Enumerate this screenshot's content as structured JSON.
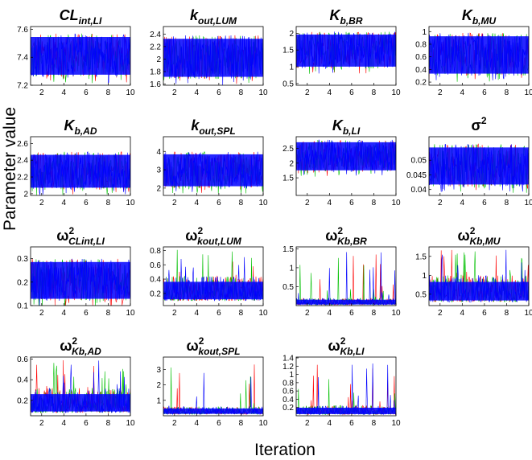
{
  "figure": {
    "ylabel": "Parameter value",
    "xlabel": "Iteration"
  },
  "chart_data": [
    {
      "type": "line",
      "title_base": "CL",
      "title_sub": "int,LI",
      "title_style": "italic",
      "yticks": [
        "7.2",
        "7.4",
        "7.6"
      ],
      "ytick_values": [
        7.2,
        7.4,
        7.6
      ],
      "ylim": [
        7.2,
        7.62
      ],
      "xticks": [
        "2",
        "4",
        "6",
        "8",
        "10"
      ],
      "xtick_values": [
        2,
        4,
        6,
        8,
        10
      ],
      "xlim": [
        1,
        10
      ],
      "band": [
        7.26,
        7.57
      ]
    },
    {
      "type": "line",
      "title_base": "k",
      "title_sub": "out,LUM",
      "title_style": "italic",
      "yticks": [
        "1.6",
        "1.8",
        "2",
        "2.2",
        "2.4"
      ],
      "ytick_values": [
        1.6,
        1.8,
        2,
        2.2,
        2.4
      ],
      "ylim": [
        1.58,
        2.52
      ],
      "xticks": [
        "2",
        "4",
        "6",
        "8",
        "10"
      ],
      "xtick_values": [
        2,
        4,
        6,
        8,
        10
      ],
      "xlim": [
        1,
        10
      ],
      "band": [
        1.68,
        2.38
      ]
    },
    {
      "type": "line",
      "title_base": "K",
      "title_sub": "b,BR",
      "title_style": "italic",
      "yticks": [
        "0.5",
        "1",
        "1.5",
        "2"
      ],
      "ytick_values": [
        0.5,
        1,
        1.5,
        2
      ],
      "ylim": [
        0.45,
        2.2
      ],
      "xticks": [
        "2",
        "4",
        "6",
        "8",
        "10"
      ],
      "xtick_values": [
        2,
        4,
        6,
        8,
        10
      ],
      "xlim": [
        1,
        10
      ],
      "band": [
        0.95,
        2.05
      ]
    },
    {
      "type": "line",
      "title_base": "K",
      "title_sub": "b,MU",
      "title_style": "italic",
      "yticks": [
        "0.2",
        "0.4",
        "0.6",
        "0.8",
        "1"
      ],
      "ytick_values": [
        0.2,
        0.4,
        0.6,
        0.8,
        1
      ],
      "ylim": [
        0.15,
        1.08
      ],
      "xticks": [
        "2",
        "4",
        "6",
        "8",
        "10"
      ],
      "xtick_values": [
        2,
        4,
        6,
        8,
        10
      ],
      "xlim": [
        1,
        10
      ],
      "band": [
        0.3,
        0.98
      ]
    },
    {
      "type": "line",
      "title_base": "K",
      "title_sub": "b,AD",
      "title_style": "italic",
      "yticks": [
        "2",
        "2.2",
        "2.4",
        "2.6"
      ],
      "ytick_values": [
        2,
        2.2,
        2.4,
        2.6
      ],
      "ylim": [
        1.98,
        2.68
      ],
      "xticks": [
        "2",
        "4",
        "6",
        "8",
        "10"
      ],
      "xtick_values": [
        2,
        4,
        6,
        8,
        10
      ],
      "xlim": [
        1,
        10
      ],
      "band": [
        2.05,
        2.5
      ]
    },
    {
      "type": "line",
      "title_base": "k",
      "title_sub": "out,SPL",
      "title_style": "italic",
      "yticks": [
        "2",
        "3",
        "4"
      ],
      "ytick_values": [
        2,
        3,
        4
      ],
      "ylim": [
        1.6,
        4.8
      ],
      "xticks": [
        "2",
        "4",
        "6",
        "8",
        "10"
      ],
      "xtick_values": [
        2,
        4,
        6,
        8,
        10
      ],
      "xlim": [
        1,
        10
      ],
      "band": [
        2.0,
        4.0
      ]
    },
    {
      "type": "line",
      "title_base": "K",
      "title_sub": "b,LI",
      "title_style": "italic",
      "yticks": [
        "1.5",
        "2",
        "2.5"
      ],
      "ytick_values": [
        1.5,
        2,
        2.5
      ],
      "ylim": [
        0.9,
        2.9
      ],
      "xticks": [
        "2",
        "4",
        "6",
        "8",
        "10"
      ],
      "xtick_values": [
        2,
        4,
        6,
        8,
        10
      ],
      "xlim": [
        1,
        10
      ],
      "band": [
        1.7,
        2.8
      ]
    },
    {
      "type": "line",
      "title_base": "σ",
      "title_sup": "2",
      "title_style": "normal",
      "yticks": [
        "0.04",
        "0.045",
        "0.05"
      ],
      "ytick_values": [
        0.04,
        0.045,
        0.05
      ],
      "ylim": [
        0.038,
        0.058
      ],
      "xticks": [
        "2",
        "4",
        "6",
        "8",
        "10"
      ],
      "xtick_values": [
        2,
        4,
        6,
        8,
        10
      ],
      "xlim": [
        1,
        10
      ],
      "band": [
        0.041,
        0.0555
      ]
    },
    {
      "type": "line",
      "title_base": "ω",
      "title_sup": "2",
      "title_sub": "CLint,LI",
      "title_style": "omega",
      "yticks": [
        "0.1",
        "0.2",
        "0.3"
      ],
      "ytick_values": [
        0.1,
        0.2,
        0.3
      ],
      "ylim": [
        0.1,
        0.35
      ],
      "xticks": [
        "2",
        "4",
        "6",
        "8",
        "10"
      ],
      "xtick_values": [
        2,
        4,
        6,
        8,
        10
      ],
      "xlim": [
        1,
        10
      ],
      "band": [
        0.12,
        0.3
      ]
    },
    {
      "type": "line",
      "title_base": "ω",
      "title_sup": "2",
      "title_sub": "kout,LUM",
      "title_style": "omega",
      "yticks": [
        "0.2",
        "0.4",
        "0.6",
        "0.8"
      ],
      "ytick_values": [
        0.2,
        0.4,
        0.6,
        0.8
      ],
      "ylim": [
        0.03,
        0.85
      ],
      "xticks": [
        "2",
        "4",
        "6",
        "8",
        "10"
      ],
      "xtick_values": [
        2,
        4,
        6,
        8,
        10
      ],
      "xlim": [
        1,
        10
      ],
      "band": [
        0.1,
        0.45
      ],
      "skew": true
    },
    {
      "type": "line",
      "title_base": "ω",
      "title_sup": "2",
      "title_sub": "Kb,BR",
      "title_style": "omega",
      "yticks": [
        "0.5",
        "1",
        "1.5"
      ],
      "ytick_values": [
        0.5,
        1,
        1.5
      ],
      "ylim": [
        0,
        1.55
      ],
      "xticks": [
        "2",
        "4",
        "6",
        "8",
        "10"
      ],
      "xtick_values": [
        2,
        4,
        6,
        8,
        10
      ],
      "xlim": [
        1,
        10
      ],
      "band": [
        0.02,
        0.2
      ],
      "skew": true
    },
    {
      "type": "line",
      "title_base": "ω",
      "title_sup": "2",
      "title_sub": "Kb,MU",
      "title_style": "omega",
      "yticks": [
        "0.5",
        "1",
        "1.5"
      ],
      "ytick_values": [
        0.5,
        1,
        1.5
      ],
      "ylim": [
        0.2,
        1.75
      ],
      "xticks": [
        "2",
        "4",
        "6",
        "8",
        "10"
      ],
      "xtick_values": [
        2,
        4,
        6,
        8,
        10
      ],
      "xlim": [
        1,
        10
      ],
      "band": [
        0.3,
        1.0
      ],
      "skew": true
    },
    {
      "type": "line",
      "title_base": "ω",
      "title_sup": "2",
      "title_sub": "Kb,AD",
      "title_style": "omega",
      "yticks": [
        "0.2",
        "0.4",
        "0.6"
      ],
      "ytick_values": [
        0.2,
        0.4,
        0.6
      ],
      "ylim": [
        0.05,
        0.62
      ],
      "xticks": [
        "2",
        "4",
        "6",
        "8",
        "10"
      ],
      "xtick_values": [
        2,
        4,
        6,
        8,
        10
      ],
      "xlim": [
        1,
        10
      ],
      "band": [
        0.08,
        0.32
      ],
      "skew": true
    },
    {
      "type": "line",
      "title_base": "ω",
      "title_sup": "2",
      "title_sub": "kout,SPL",
      "title_style": "omega",
      "yticks": [
        "1",
        "2",
        "3"
      ],
      "ytick_values": [
        1,
        2,
        3
      ],
      "ylim": [
        0,
        3.8
      ],
      "xticks": [
        "2",
        "4",
        "6",
        "8",
        "10"
      ],
      "xtick_values": [
        2,
        4,
        6,
        8,
        10
      ],
      "xlim": [
        1,
        10
      ],
      "band": [
        0.1,
        0.6
      ],
      "skew": true
    },
    {
      "type": "line",
      "title_base": "ω",
      "title_sup": "2",
      "title_sub": "Kb,LI",
      "title_style": "omega",
      "yticks": [
        "0.2",
        "0.4",
        "0.6",
        "0.8",
        "1",
        "1.2",
        "1.4"
      ],
      "ytick_values": [
        0.2,
        0.4,
        0.6,
        0.8,
        1,
        1.2,
        1.4
      ],
      "ylim": [
        0,
        1.42
      ],
      "xticks": [
        "2",
        "4",
        "6",
        "8",
        "10"
      ],
      "xtick_values": [
        2,
        4,
        6,
        8,
        10
      ],
      "xlim": [
        1,
        10
      ],
      "band": [
        0.03,
        0.25
      ],
      "skew": true
    }
  ],
  "series_colors": [
    "#ff0000",
    "#00c000",
    "#0000ff"
  ]
}
